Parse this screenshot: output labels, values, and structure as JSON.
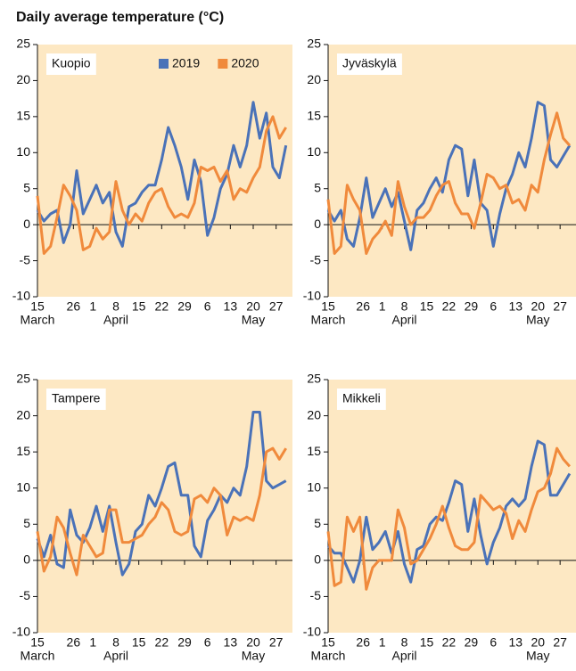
{
  "title": "Daily average temperature (°C)",
  "chart_data": [
    {
      "type": "line",
      "title": "Kuopio",
      "legend": "top-right",
      "background": "#fde8c3",
      "x": [
        0,
        2,
        4,
        6,
        8,
        10,
        12,
        14,
        16,
        18,
        20,
        22,
        24,
        26,
        28,
        30,
        32,
        34,
        36,
        38,
        40,
        42,
        44,
        46,
        48,
        50,
        52,
        54,
        56,
        58,
        60,
        62,
        64,
        66,
        68,
        70,
        72,
        74,
        76
      ],
      "series": [
        {
          "name": "2019",
          "color": "#4a72b8",
          "values": [
            2,
            0.5,
            1.5,
            2,
            -2.5,
            0,
            7.5,
            1.5,
            3.5,
            5.5,
            3,
            4.5,
            -1,
            -3,
            2.5,
            3,
            4.5,
            5.5,
            5.5,
            9,
            13.5,
            11,
            8,
            3.5,
            9,
            6,
            -1.5,
            1,
            5,
            7,
            11,
            8,
            11,
            17,
            12,
            15.5,
            8,
            6.5,
            11
          ]
        },
        {
          "name": "2020",
          "color": "#f08a3c",
          "values": [
            4,
            -4,
            -3,
            1,
            5.5,
            4,
            2,
            -3.5,
            -3,
            -0.5,
            -2,
            -1,
            6,
            2,
            0,
            1.5,
            0.5,
            3,
            4.5,
            5,
            2.5,
            1,
            1.5,
            1,
            3,
            8,
            7.5,
            8,
            6,
            7.5,
            3.5,
            5,
            4.5,
            6.5,
            8,
            13,
            15,
            12,
            13.5
          ]
        }
      ],
      "xlim": [
        0,
        78
      ],
      "ylim": [
        -10,
        25
      ],
      "yticks": [
        -10,
        -5,
        0,
        5,
        10,
        15,
        20,
        25
      ],
      "xticks": [
        {
          "value": 0,
          "label": "15"
        },
        {
          "value": 11,
          "label": "26"
        },
        {
          "value": 17,
          "label": "1"
        },
        {
          "value": 24,
          "label": "8"
        },
        {
          "value": 31,
          "label": "15"
        },
        {
          "value": 38,
          "label": "22"
        },
        {
          "value": 45,
          "label": "29"
        },
        {
          "value": 52,
          "label": "6"
        },
        {
          "value": 59,
          "label": "13"
        },
        {
          "value": 66,
          "label": "20"
        },
        {
          "value": 73,
          "label": "27"
        }
      ],
      "xgroups": [
        {
          "value": 0,
          "label": "March"
        },
        {
          "value": 24,
          "label": "April"
        },
        {
          "value": 66,
          "label": "May"
        }
      ]
    },
    {
      "type": "line",
      "title": "Jyväskylä",
      "background": "#fde8c3",
      "x": [
        0,
        2,
        4,
        6,
        8,
        10,
        12,
        14,
        16,
        18,
        20,
        22,
        24,
        26,
        28,
        30,
        32,
        34,
        36,
        38,
        40,
        42,
        44,
        46,
        48,
        50,
        52,
        54,
        56,
        58,
        60,
        62,
        64,
        66,
        68,
        70,
        72,
        74,
        76
      ],
      "series": [
        {
          "color": "#4a72b8",
          "values": [
            2,
            0.5,
            2,
            -2,
            -3,
            1,
            6.5,
            1,
            3,
            5,
            2.5,
            4.5,
            0.5,
            -3.5,
            2,
            3,
            5,
            6.5,
            4.5,
            9,
            11,
            10.5,
            4,
            9,
            3,
            2,
            -3,
            1.5,
            5,
            7,
            10,
            8,
            12,
            17,
            16.5,
            9,
            8,
            9.5,
            11
          ]
        },
        {
          "color": "#f08a3c",
          "values": [
            3.5,
            -4,
            -3,
            5.5,
            3.5,
            2,
            -4,
            -2,
            -1,
            0.5,
            -1.5,
            6,
            2.5,
            0,
            1,
            1,
            2,
            4,
            5.5,
            6,
            3,
            1.5,
            1.5,
            -0.5,
            3,
            7,
            6.5,
            5,
            5.5,
            3,
            3.5,
            2,
            5.5,
            4.5,
            9,
            12.5,
            15.5,
            12,
            11
          ]
        }
      ],
      "xlim": [
        0,
        78
      ],
      "ylim": [
        -10,
        25
      ],
      "yticks": [
        -10,
        -5,
        0,
        5,
        10,
        15,
        20,
        25
      ],
      "xticks": [
        {
          "value": 0,
          "label": "15"
        },
        {
          "value": 11,
          "label": "26"
        },
        {
          "value": 17,
          "label": "1"
        },
        {
          "value": 24,
          "label": "8"
        },
        {
          "value": 31,
          "label": "15"
        },
        {
          "value": 38,
          "label": "22"
        },
        {
          "value": 45,
          "label": "29"
        },
        {
          "value": 52,
          "label": "6"
        },
        {
          "value": 59,
          "label": "13"
        },
        {
          "value": 66,
          "label": "20"
        },
        {
          "value": 73,
          "label": "27"
        }
      ],
      "xgroups": [
        {
          "value": 0,
          "label": "March"
        },
        {
          "value": 24,
          "label": "April"
        },
        {
          "value": 66,
          "label": "May"
        }
      ]
    },
    {
      "type": "line",
      "title": "Tampere",
      "background": "#fde8c3",
      "x": [
        0,
        2,
        4,
        6,
        8,
        10,
        12,
        14,
        16,
        18,
        20,
        22,
        24,
        26,
        28,
        30,
        32,
        34,
        36,
        38,
        40,
        42,
        44,
        46,
        48,
        50,
        52,
        54,
        56,
        58,
        60,
        62,
        64,
        66,
        68,
        70,
        72,
        74,
        76
      ],
      "series": [
        {
          "color": "#4a72b8",
          "values": [
            3,
            0.5,
            3.5,
            -0.5,
            -1,
            7,
            3.5,
            2.5,
            4.5,
            7.5,
            4,
            7.5,
            2.5,
            -2,
            -0.5,
            4,
            5,
            9,
            7.5,
            10,
            13,
            13.5,
            9,
            9,
            2,
            0.5,
            5.5,
            7,
            9,
            8,
            10,
            9,
            13,
            20.5,
            20.5,
            11,
            10,
            10.5,
            11
          ]
        },
        {
          "color": "#f08a3c",
          "values": [
            4,
            -1.5,
            0.5,
            6,
            4.5,
            1,
            -2,
            3.5,
            2,
            0.5,
            1,
            7,
            7,
            2.5,
            2.5,
            3,
            3.5,
            5,
            6,
            8,
            7,
            4,
            3.5,
            4,
            8.5,
            9,
            8,
            10,
            9,
            3.5,
            6,
            5.5,
            6,
            5.5,
            9,
            15,
            15.5,
            14,
            15.5
          ]
        }
      ],
      "xlim": [
        0,
        78
      ],
      "ylim": [
        -10,
        25
      ],
      "yticks": [
        -10,
        -5,
        0,
        5,
        10,
        15,
        20,
        25
      ],
      "xticks": [
        {
          "value": 0,
          "label": "15"
        },
        {
          "value": 11,
          "label": "26"
        },
        {
          "value": 17,
          "label": "1"
        },
        {
          "value": 24,
          "label": "8"
        },
        {
          "value": 31,
          "label": "15"
        },
        {
          "value": 38,
          "label": "22"
        },
        {
          "value": 45,
          "label": "29"
        },
        {
          "value": 52,
          "label": "6"
        },
        {
          "value": 59,
          "label": "13"
        },
        {
          "value": 66,
          "label": "20"
        },
        {
          "value": 73,
          "label": "27"
        }
      ],
      "xgroups": [
        {
          "value": 0,
          "label": "March"
        },
        {
          "value": 24,
          "label": "April"
        },
        {
          "value": 66,
          "label": "May"
        }
      ]
    },
    {
      "type": "line",
      "title": "Mikkeli",
      "background": "#fde8c3",
      "x": [
        0,
        2,
        4,
        6,
        8,
        10,
        12,
        14,
        16,
        18,
        20,
        22,
        24,
        26,
        28,
        30,
        32,
        34,
        36,
        38,
        40,
        42,
        44,
        46,
        48,
        50,
        52,
        54,
        56,
        58,
        60,
        62,
        64,
        66,
        68,
        70,
        72,
        74,
        76
      ],
      "series": [
        {
          "color": "#4a72b8",
          "values": [
            2,
            1,
            1,
            -1,
            -3,
            0,
            6,
            1.5,
            2.5,
            4,
            1,
            4,
            -0.5,
            -3,
            1.5,
            2,
            5,
            6,
            5.5,
            8,
            11,
            10.5,
            4,
            8.5,
            3.5,
            -0.5,
            2.5,
            4.5,
            7.5,
            8.5,
            7.5,
            8.5,
            13,
            16.5,
            16,
            9,
            9,
            10.5,
            12
          ]
        },
        {
          "color": "#f08a3c",
          "values": [
            4,
            -3.5,
            -3,
            6,
            4,
            6,
            -4,
            -1,
            0,
            0,
            0,
            7,
            4.5,
            -0.5,
            0,
            1.5,
            3,
            5,
            7.5,
            4.5,
            2,
            1.5,
            1.5,
            2.5,
            9,
            8,
            7,
            7.5,
            6.5,
            3,
            5.5,
            4,
            7,
            9.5,
            10,
            12,
            15.5,
            14,
            13
          ]
        }
      ],
      "xlim": [
        0,
        78
      ],
      "ylim": [
        -10,
        25
      ],
      "yticks": [
        -10,
        -5,
        0,
        5,
        10,
        15,
        20,
        25
      ],
      "xticks": [
        {
          "value": 0,
          "label": "15"
        },
        {
          "value": 11,
          "label": "26"
        },
        {
          "value": 17,
          "label": "1"
        },
        {
          "value": 24,
          "label": "8"
        },
        {
          "value": 31,
          "label": "15"
        },
        {
          "value": 38,
          "label": "22"
        },
        {
          "value": 45,
          "label": "29"
        },
        {
          "value": 52,
          "label": "6"
        },
        {
          "value": 59,
          "label": "13"
        },
        {
          "value": 66,
          "label": "20"
        },
        {
          "value": 73,
          "label": "27"
        }
      ],
      "xgroups": [
        {
          "value": 0,
          "label": "March"
        },
        {
          "value": 24,
          "label": "April"
        },
        {
          "value": 66,
          "label": "May"
        }
      ]
    }
  ]
}
